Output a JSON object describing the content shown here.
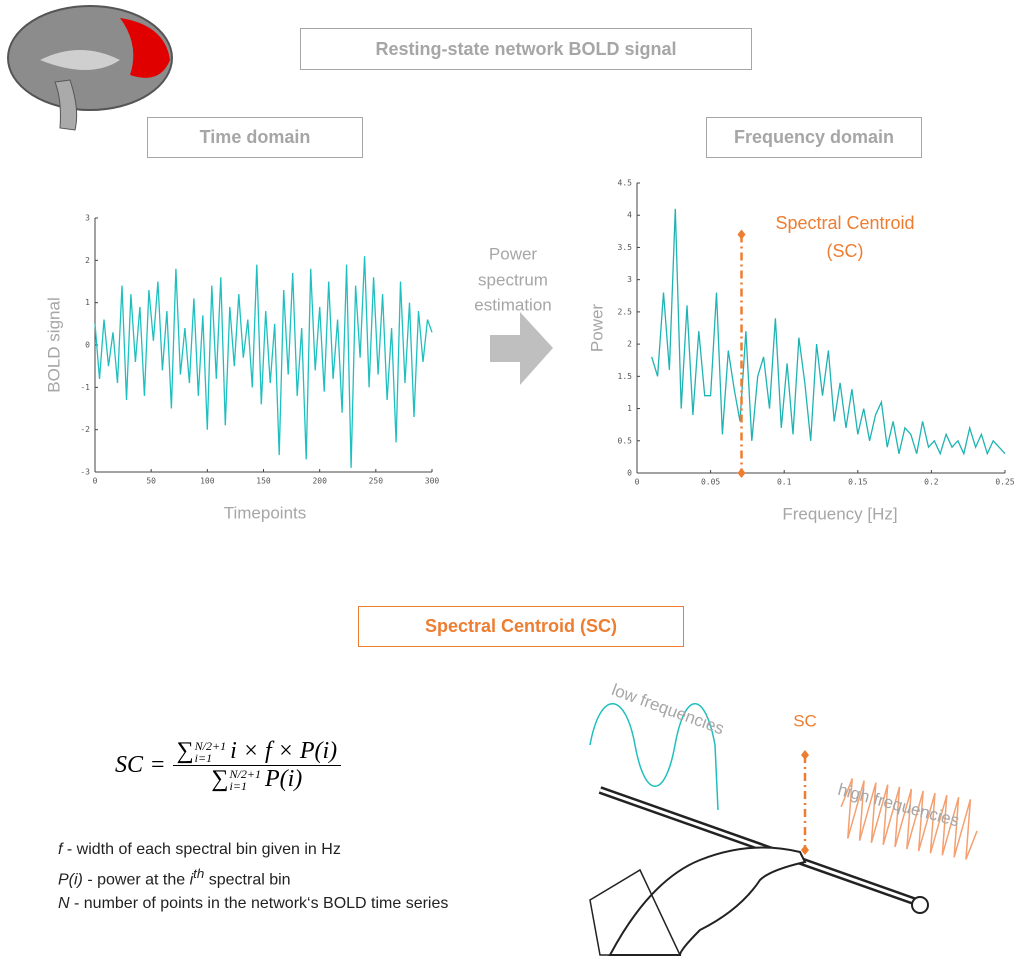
{
  "header": {
    "title": "Resting-state network BOLD signal",
    "time_domain": "Time domain",
    "frequency_domain": "Frequency domain"
  },
  "arrow_text": [
    "Power",
    "spectrum",
    "estimation"
  ],
  "chart_data": [
    {
      "type": "line",
      "x_label": "Timepoints",
      "y_label": "BOLD signal",
      "color": "#1fbfbf",
      "xlim": [
        0,
        300
      ],
      "xticks": [
        0,
        50,
        100,
        150,
        200,
        250,
        300
      ],
      "ylim": [
        -3,
        3
      ],
      "yticks": [
        -3,
        -2,
        -1,
        0,
        1,
        2,
        3
      ],
      "x": [
        0,
        4,
        8,
        12,
        16,
        20,
        24,
        28,
        32,
        36,
        40,
        44,
        48,
        52,
        56,
        60,
        64,
        68,
        72,
        76,
        80,
        84,
        88,
        92,
        96,
        100,
        104,
        108,
        112,
        116,
        120,
        124,
        128,
        132,
        136,
        140,
        144,
        148,
        152,
        156,
        160,
        164,
        168,
        172,
        176,
        180,
        184,
        188,
        192,
        196,
        200,
        204,
        208,
        212,
        216,
        220,
        224,
        228,
        232,
        236,
        240,
        244,
        248,
        252,
        256,
        260,
        264,
        268,
        272,
        276,
        280,
        284,
        288,
        292,
        296,
        300
      ],
      "values": [
        0.5,
        -0.8,
        0.6,
        -0.5,
        0.3,
        -0.9,
        1.4,
        -1.3,
        1.2,
        -0.4,
        0.9,
        -1.2,
        1.3,
        0.1,
        1.5,
        -0.6,
        0.8,
        -1.5,
        1.8,
        -0.7,
        0.4,
        -0.9,
        1.1,
        -1.2,
        0.7,
        -2.0,
        1.4,
        -0.8,
        1.6,
        -1.9,
        0.9,
        -0.5,
        1.2,
        -0.3,
        0.6,
        -1.0,
        1.9,
        -1.4,
        0.8,
        -0.9,
        0.5,
        -2.6,
        1.3,
        -0.7,
        1.7,
        -1.2,
        0.4,
        -2.7,
        1.8,
        -0.6,
        0.9,
        -1.1,
        1.5,
        -0.8,
        0.6,
        -1.6,
        1.9,
        -2.9,
        1.4,
        -0.3,
        2.1,
        -1.0,
        1.6,
        -0.7,
        1.2,
        -1.3,
        0.4,
        -2.3,
        1.5,
        -0.9,
        1.0,
        -1.7,
        0.8,
        -0.4,
        0.6,
        0.3
      ]
    },
    {
      "type": "line",
      "x_label": "Frequency [Hz]",
      "y_label": "Power",
      "color": "#1fb3b3",
      "xlim": [
        0,
        0.25
      ],
      "xticks": [
        0,
        0.05,
        0.1,
        0.15,
        0.2,
        0.25
      ],
      "ylim": [
        0,
        4.5
      ],
      "yticks": [
        0,
        0.5,
        1,
        1.5,
        2,
        2.5,
        3,
        3.5,
        4,
        4.5
      ],
      "x": [
        0.01,
        0.014,
        0.018,
        0.022,
        0.026,
        0.03,
        0.034,
        0.038,
        0.042,
        0.046,
        0.05,
        0.054,
        0.058,
        0.062,
        0.066,
        0.07,
        0.074,
        0.078,
        0.082,
        0.086,
        0.09,
        0.094,
        0.098,
        0.102,
        0.106,
        0.11,
        0.114,
        0.118,
        0.122,
        0.126,
        0.13,
        0.134,
        0.138,
        0.142,
        0.146,
        0.15,
        0.154,
        0.158,
        0.162,
        0.166,
        0.17,
        0.174,
        0.178,
        0.182,
        0.186,
        0.19,
        0.194,
        0.198,
        0.202,
        0.206,
        0.21,
        0.214,
        0.218,
        0.222,
        0.226,
        0.23,
        0.234,
        0.238,
        0.242,
        0.246,
        0.25
      ],
      "values": [
        1.8,
        1.5,
        2.8,
        1.6,
        4.1,
        1.0,
        2.6,
        0.9,
        2.2,
        1.2,
        1.2,
        2.8,
        0.6,
        1.9,
        1.3,
        0.8,
        2.2,
        0.5,
        1.5,
        1.8,
        1.0,
        2.4,
        0.7,
        1.7,
        0.6,
        2.1,
        1.4,
        0.5,
        2.0,
        1.2,
        1.9,
        0.8,
        1.4,
        0.7,
        1.3,
        0.6,
        1.0,
        0.5,
        0.9,
        1.1,
        0.4,
        0.8,
        0.3,
        0.7,
        0.6,
        0.3,
        0.8,
        0.4,
        0.5,
        0.3,
        0.6,
        0.4,
        0.5,
        0.3,
        0.7,
        0.4,
        0.6,
        0.3,
        0.5,
        0.4,
        0.3
      ],
      "annotation": {
        "lines": [
          "Spectral Centroid",
          "(SC)"
        ],
        "x": 0.071,
        "y_top": 3.7,
        "color": "#ed7d31"
      }
    }
  ],
  "sc_section": {
    "title": "Spectral Centroid (SC)",
    "formula": {
      "lhs": "SC",
      "eq": "=",
      "sum": "∑",
      "sub": "i=1",
      "sup": "N/2+1",
      "numerator": "i × f × P(i)",
      "denominator": "P(i)"
    },
    "definitions": [
      {
        "symbol": "f",
        "text": " - width of each spectral bin given in Hz"
      },
      {
        "symbol": "P(i)",
        "text_before": " - power at the ",
        "index": "i",
        "superscript": "th",
        "text_after": " spectral bin"
      },
      {
        "symbol": "N",
        "text": " - number of points in the network‘s BOLD time series"
      }
    ],
    "illustration": {
      "low": "low frequencies",
      "high": "high frequencies",
      "sc": "SC"
    }
  }
}
